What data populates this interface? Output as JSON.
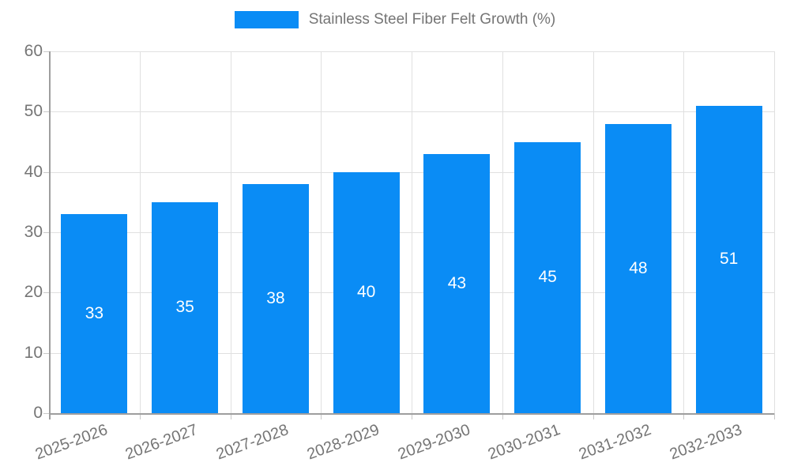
{
  "chart_data": {
    "type": "bar",
    "title": "",
    "series": [
      {
        "name": "Stainless Steel Fiber Felt Growth (%)",
        "values": [
          33,
          35,
          38,
          40,
          43,
          45,
          48,
          51
        ]
      }
    ],
    "categories": [
      "2025-2026",
      "2026-2027",
      "2027-2028",
      "2028-2029",
      "2029-2030",
      "2030-2031",
      "2031-2032",
      "2032-2033"
    ],
    "xlabel": "",
    "ylabel": "",
    "ylim": [
      0,
      60
    ],
    "yticks": [
      0,
      10,
      20,
      30,
      40,
      50,
      60
    ],
    "grid": true,
    "legend_position": "top-center",
    "data_labels": "inside-center",
    "colors": {
      "bar": "#0a8cf5",
      "grid": "#e0e0e0",
      "axis": "#9e9e9e",
      "tick": "#c9c9c9",
      "text": "#757575",
      "data_label": "#ffffff",
      "background": "#ffffff"
    }
  },
  "legend": {
    "label": "Stainless Steel Fiber Felt Growth (%)",
    "swatch_color": "#0a8cf5"
  }
}
